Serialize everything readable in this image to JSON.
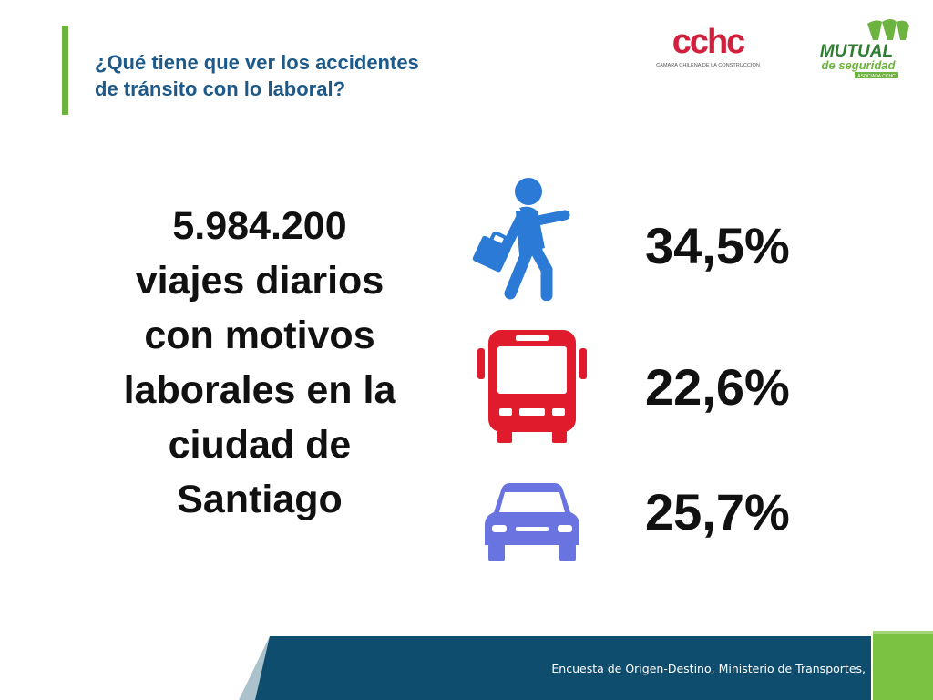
{
  "header": {
    "title_line1": "¿Qué tiene que ver los accidentes",
    "title_line2": "de tránsito con lo laboral?"
  },
  "logos": {
    "cchc_mark": "cchc",
    "cchc_sub": "CAMARA CHILENA DE LA CONSTRUCCION",
    "mutual_line1": "MUTUAL",
    "mutual_line2": "de seguridad",
    "mutual_line3": "ASOCIADA CCHC"
  },
  "headline": {
    "lines": [
      "5.984.200",
      "viajes diarios",
      "con motivos",
      "laborales en la",
      "ciudad de",
      "Santiago"
    ]
  },
  "modes": [
    {
      "icon": "pedestrian-icon",
      "value": "34,5%",
      "color": "#2b7bd6"
    },
    {
      "icon": "bus-icon",
      "value": "22,6%",
      "color": "#e01b2b"
    },
    {
      "icon": "car-icon",
      "value": "25,7%",
      "color": "#6a74e0"
    }
  ],
  "footer": {
    "source": "Encuesta de Origen-Destino, Ministerio de Transportes,"
  },
  "colors": {
    "title": "#1d5a8a",
    "accent_green": "#6db33f",
    "footer_blue": "#0f4d6e"
  }
}
